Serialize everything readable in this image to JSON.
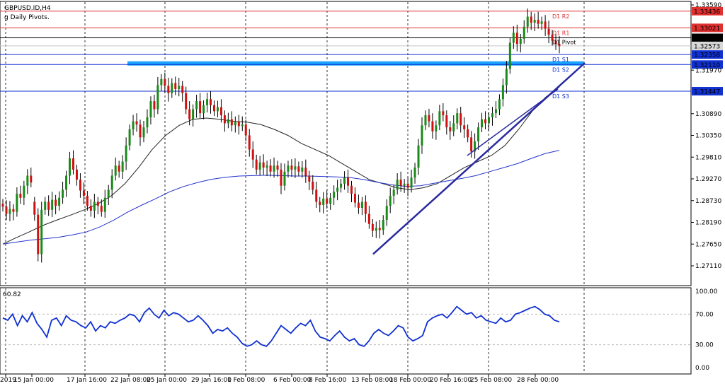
{
  "chart_data": {
    "type": "candlestick",
    "symbol_title": "GBPUSD.ID,H4",
    "indicator_title": "g Daily Pivots.",
    "price_axis": {
      "ylim": [
        1.2673,
        1.338
      ],
      "ticks": [
        "1.33590",
        "1.33021",
        "1.32773",
        "1.32358",
        "1.32110",
        "1.31970",
        "1.31447",
        "1.30890",
        "1.30350",
        "1.29810",
        "1.29270",
        "1.28730",
        "1.28190",
        "1.27650",
        "1.27110"
      ]
    },
    "pivots": [
      {
        "name": "D1 R2",
        "value": 1.33436,
        "color": "#e03030",
        "label": "1.33436"
      },
      {
        "name": "D1 R1",
        "value": 1.33021,
        "color": "#e03030",
        "label": "1.33021"
      },
      {
        "name": "D1 Pivot",
        "value": 1.32773,
        "color": "#000000",
        "label": "1.32773"
      },
      {
        "name": "D1 S1",
        "value": 1.32358,
        "color": "#1030d0",
        "label": "1.32358"
      },
      {
        "name": "D1 S2",
        "value": 1.3211,
        "color": "#1030d0",
        "label": "1.32110"
      },
      {
        "name": "D1 S3",
        "value": 1.31447,
        "color": "#1030d0",
        "label": "1.31447"
      }
    ],
    "current_price_label": "1.32573",
    "resistance_zone": {
      "from_x": "22 Jan 08:00",
      "to_x": "28 Feb 00:00",
      "low": 1.321,
      "high": 1.3219,
      "color": "#1aa3ff"
    },
    "x_ticks": [
      "2019",
      "15 Jan 00:00",
      "17 Jan 16:00",
      "22 Jan 08:00",
      "25 Jan 00:00",
      "29 Jan 16:00",
      "1 Feb 08:00",
      "6 Feb 00:00",
      "8 Feb 16:00",
      "13 Feb 08:00",
      "18 Feb 00:00",
      "20 Feb 16:00",
      "25 Feb 08:00",
      "28 Feb 00:00"
    ],
    "candles": [
      {
        "o": 1.2865,
        "c": 1.2858
      },
      {
        "o": 1.2858,
        "c": 1.284
      },
      {
        "o": 1.284,
        "c": 1.2852
      },
      {
        "o": 1.2852,
        "c": 1.2845
      },
      {
        "o": 1.2845,
        "c": 1.289
      },
      {
        "o": 1.289,
        "c": 1.288
      },
      {
        "o": 1.288,
        "c": 1.291
      },
      {
        "o": 1.291,
        "c": 1.2935
      },
      {
        "o": 1.2935,
        "c": 1.2918
      },
      {
        "o": 1.287,
        "c": 1.2838
      },
      {
        "o": 1.2838,
        "c": 1.274
      },
      {
        "o": 1.274,
        "c": 1.285
      },
      {
        "o": 1.285,
        "c": 1.287
      },
      {
        "o": 1.287,
        "c": 1.285
      },
      {
        "o": 1.285,
        "c": 1.2875
      },
      {
        "o": 1.2875,
        "c": 1.286
      },
      {
        "o": 1.286,
        "c": 1.288
      },
      {
        "o": 1.288,
        "c": 1.29
      },
      {
        "o": 1.29,
        "c": 1.2935
      },
      {
        "o": 1.2935,
        "c": 1.2978
      },
      {
        "o": 1.2978,
        "c": 1.295
      },
      {
        "o": 1.295,
        "c": 1.2925
      },
      {
        "o": 1.2925,
        "c": 1.2898
      },
      {
        "o": 1.2898,
        "c": 1.2885
      },
      {
        "o": 1.2885,
        "c": 1.286
      },
      {
        "o": 1.286,
        "c": 1.2848
      },
      {
        "o": 1.2848,
        "c": 1.287
      },
      {
        "o": 1.287,
        "c": 1.286
      },
      {
        "o": 1.286,
        "c": 1.2845
      },
      {
        "o": 1.2845,
        "c": 1.288
      },
      {
        "o": 1.288,
        "c": 1.29
      },
      {
        "o": 1.29,
        "c": 1.2935
      },
      {
        "o": 1.2935,
        "c": 1.296
      },
      {
        "o": 1.296,
        "c": 1.2945
      },
      {
        "o": 1.2945,
        "c": 1.297
      },
      {
        "o": 1.297,
        "c": 1.301
      },
      {
        "o": 1.301,
        "c": 1.305
      },
      {
        "o": 1.305,
        "c": 1.307
      },
      {
        "o": 1.307,
        "c": 1.3062
      },
      {
        "o": 1.3062,
        "c": 1.303
      },
      {
        "o": 1.303,
        "c": 1.3055
      },
      {
        "o": 1.3055,
        "c": 1.308
      },
      {
        "o": 1.308,
        "c": 1.312
      },
      {
        "o": 1.312,
        "c": 1.31
      },
      {
        "o": 1.31,
        "c": 1.316
      },
      {
        "o": 1.316,
        "c": 1.3175
      },
      {
        "o": 1.3175,
        "c": 1.3158
      },
      {
        "o": 1.3158,
        "c": 1.314
      },
      {
        "o": 1.314,
        "c": 1.3165
      },
      {
        "o": 1.3165,
        "c": 1.315
      },
      {
        "o": 1.315,
        "c": 1.3158
      },
      {
        "o": 1.3158,
        "c": 1.314
      },
      {
        "o": 1.314,
        "c": 1.31
      },
      {
        "o": 1.31,
        "c": 1.3075
      },
      {
        "o": 1.3075,
        "c": 1.31
      },
      {
        "o": 1.31,
        "c": 1.312
      },
      {
        "o": 1.312,
        "c": 1.309
      },
      {
        "o": 1.309,
        "c": 1.311
      },
      {
        "o": 1.311,
        "c": 1.3125
      },
      {
        "o": 1.3125,
        "c": 1.311
      },
      {
        "o": 1.311,
        "c": 1.3095
      },
      {
        "o": 1.3095,
        "c": 1.3105
      },
      {
        "o": 1.3105,
        "c": 1.3085
      },
      {
        "o": 1.3085,
        "c": 1.3065
      },
      {
        "o": 1.3065,
        "c": 1.3075
      },
      {
        "o": 1.3075,
        "c": 1.306
      },
      {
        "o": 1.306,
        "c": 1.307
      },
      {
        "o": 1.307,
        "c": 1.3058
      },
      {
        "o": 1.3058,
        "c": 1.3062
      },
      {
        "o": 1.3062,
        "c": 1.3035
      },
      {
        "o": 1.3035,
        "c": 1.3
      },
      {
        "o": 1.3,
        "c": 1.2975
      },
      {
        "o": 1.2975,
        "c": 1.295
      },
      {
        "o": 1.295,
        "c": 1.2968
      },
      {
        "o": 1.2968,
        "c": 1.2955
      },
      {
        "o": 1.2955,
        "c": 1.296
      },
      {
        "o": 1.296,
        "c": 1.2945
      },
      {
        "o": 1.2945,
        "c": 1.296
      },
      {
        "o": 1.296,
        "c": 1.295
      },
      {
        "o": 1.295,
        "c": 1.291
      },
      {
        "o": 1.291,
        "c": 1.2945
      },
      {
        "o": 1.2945,
        "c": 1.296
      },
      {
        "o": 1.296,
        "c": 1.295
      },
      {
        "o": 1.295,
        "c": 1.2958
      },
      {
        "o": 1.2958,
        "c": 1.2945
      },
      {
        "o": 1.2945,
        "c": 1.2955
      },
      {
        "o": 1.2955,
        "c": 1.2935
      },
      {
        "o": 1.2935,
        "c": 1.292
      },
      {
        "o": 1.292,
        "c": 1.29
      },
      {
        "o": 1.29,
        "c": 1.287
      },
      {
        "o": 1.287,
        "c": 1.2862
      },
      {
        "o": 1.2862,
        "c": 1.2878
      },
      {
        "o": 1.2878,
        "c": 1.2865
      },
      {
        "o": 1.2865,
        "c": 1.288
      },
      {
        "o": 1.288,
        "c": 1.2895
      },
      {
        "o": 1.2895,
        "c": 1.2905
      },
      {
        "o": 1.2905,
        "c": 1.2915
      },
      {
        "o": 1.2915,
        "c": 1.293
      },
      {
        "o": 1.293,
        "c": 1.291
      },
      {
        "o": 1.291,
        "c": 1.289
      },
      {
        "o": 1.289,
        "c": 1.2868
      },
      {
        "o": 1.2868,
        "c": 1.2855
      },
      {
        "o": 1.2855,
        "c": 1.287
      },
      {
        "o": 1.287,
        "c": 1.284
      },
      {
        "o": 1.284,
        "c": 1.2815
      },
      {
        "o": 1.2815,
        "c": 1.2798
      },
      {
        "o": 1.2798,
        "c": 1.2805
      },
      {
        "o": 1.2805,
        "c": 1.28
      },
      {
        "o": 1.28,
        "c": 1.2825
      },
      {
        "o": 1.2825,
        "c": 1.286
      },
      {
        "o": 1.286,
        "c": 1.2885
      },
      {
        "o": 1.2885,
        "c": 1.29
      },
      {
        "o": 1.29,
        "c": 1.2925
      },
      {
        "o": 1.2925,
        "c": 1.291
      },
      {
        "o": 1.291,
        "c": 1.2915
      },
      {
        "o": 1.2915,
        "c": 1.2905
      },
      {
        "o": 1.2905,
        "c": 1.293
      },
      {
        "o": 1.293,
        "c": 1.2955
      },
      {
        "o": 1.2955,
        "c": 1.301
      },
      {
        "o": 1.301,
        "c": 1.306
      },
      {
        "o": 1.306,
        "c": 1.3085
      },
      {
        "o": 1.3085,
        "c": 1.307
      },
      {
        "o": 1.307,
        "c": 1.3045
      },
      {
        "o": 1.3045,
        "c": 1.306
      },
      {
        "o": 1.306,
        "c": 1.3095
      },
      {
        "o": 1.3095,
        "c": 1.3085
      },
      {
        "o": 1.3085,
        "c": 1.3055
      },
      {
        "o": 1.3055,
        "c": 1.3045
      },
      {
        "o": 1.3045,
        "c": 1.3065
      },
      {
        "o": 1.3065,
        "c": 1.309
      },
      {
        "o": 1.309,
        "c": 1.306
      },
      {
        "o": 1.306,
        "c": 1.305
      },
      {
        "o": 1.305,
        "c": 1.303
      },
      {
        "o": 1.303,
        "c": 1.2995
      },
      {
        "o": 1.2995,
        "c": 1.302
      },
      {
        "o": 1.302,
        "c": 1.3055
      },
      {
        "o": 1.3055,
        "c": 1.3075
      },
      {
        "o": 1.3075,
        "c": 1.3065
      },
      {
        "o": 1.3065,
        "c": 1.308
      },
      {
        "o": 1.308,
        "c": 1.309
      },
      {
        "o": 1.309,
        "c": 1.31
      },
      {
        "o": 1.31,
        "c": 1.3125
      },
      {
        "o": 1.3125,
        "c": 1.316
      },
      {
        "o": 1.316,
        "c": 1.32
      },
      {
        "o": 1.32,
        "c": 1.3265
      },
      {
        "o": 1.3265,
        "c": 1.329
      },
      {
        "o": 1.329,
        "c": 1.3262
      },
      {
        "o": 1.3262,
        "c": 1.3275
      },
      {
        "o": 1.3275,
        "c": 1.3305
      },
      {
        "o": 1.3305,
        "c": 1.333
      },
      {
        "o": 1.333,
        "c": 1.3315
      },
      {
        "o": 1.3315,
        "c": 1.3322
      },
      {
        "o": 1.3322,
        "c": 1.3312
      },
      {
        "o": 1.3312,
        "c": 1.3318
      },
      {
        "o": 1.3318,
        "c": 1.33
      },
      {
        "o": 1.33,
        "c": 1.3285
      },
      {
        "o": 1.3285,
        "c": 1.327
      },
      {
        "o": 1.327,
        "c": 1.3262
      },
      {
        "o": 1.3262,
        "c": 1.3257
      }
    ],
    "ma_fast": [
      1.2765,
      1.2781,
      1.2796,
      1.2812,
      1.2825,
      1.2837,
      1.285,
      1.2865,
      1.2885,
      1.2915,
      1.2955,
      1.3,
      1.3035,
      1.306,
      1.3075,
      1.3078,
      1.3075,
      1.307,
      1.3068,
      1.3062,
      1.305,
      1.3035,
      1.3015,
      1.3,
      1.2985,
      1.2965,
      1.2945,
      1.2925,
      1.2915,
      1.2905,
      1.29,
      1.2905,
      1.2915,
      1.2935,
      1.2955,
      1.297,
      1.2985,
      1.301,
      1.305,
      1.3095,
      1.313,
      1.3155
    ],
    "ma_slow": [
      1.2765,
      1.277,
      1.2775,
      1.2778,
      1.2782,
      1.2788,
      1.2795,
      1.2808,
      1.2825,
      1.2845,
      1.2862,
      1.2878,
      1.2895,
      1.2908,
      1.2918,
      1.2926,
      1.2931,
      1.2934,
      1.2935,
      1.2936,
      1.2935,
      1.2934,
      1.2934,
      1.2933,
      1.2932,
      1.293,
      1.2925,
      1.2918,
      1.2912,
      1.2908,
      1.291,
      1.2916,
      1.2922,
      1.2928,
      1.2935,
      1.2945,
      1.2955,
      1.2965,
      1.2978,
      1.299,
      1.2998
    ],
    "trendlines": [
      {
        "from": [
          "13 Feb 00:00",
          1.274
        ],
        "to": [
          "28 Feb 08:00",
          1.3215
        ]
      },
      {
        "from": [
          "20 Feb 16:00",
          1.2985
        ],
        "to": [
          "28 Feb 00:00",
          1.315
        ]
      }
    ],
    "oscillator": {
      "title": "60.82",
      "ylim": [
        0,
        100
      ],
      "ticks": [
        "100.00",
        "70.00",
        "30.00",
        "0.00"
      ],
      "levels": [
        70,
        30
      ],
      "values": [
        65,
        62,
        70,
        55,
        68,
        60,
        72,
        58,
        50,
        40,
        62,
        65,
        55,
        68,
        62,
        60,
        55,
        52,
        60,
        48,
        55,
        52,
        60,
        58,
        62,
        65,
        70,
        68,
        60,
        72,
        78,
        70,
        65,
        75,
        68,
        72,
        70,
        65,
        60,
        62,
        68,
        62,
        55,
        45,
        50,
        48,
        52,
        45,
        40,
        32,
        28,
        30,
        35,
        30,
        28,
        35,
        45,
        55,
        50,
        45,
        52,
        58,
        55,
        62,
        48,
        40,
        38,
        35,
        42,
        48,
        40,
        35,
        38,
        30,
        28,
        35,
        45,
        50,
        45,
        42,
        48,
        55,
        52,
        40,
        35,
        38,
        42,
        60,
        65,
        68,
        70,
        65,
        72,
        80,
        75,
        70,
        72,
        65,
        68,
        62,
        60,
        58,
        65,
        60,
        62,
        70,
        72,
        75,
        78,
        80,
        76,
        70,
        68,
        62,
        60
      ]
    }
  }
}
